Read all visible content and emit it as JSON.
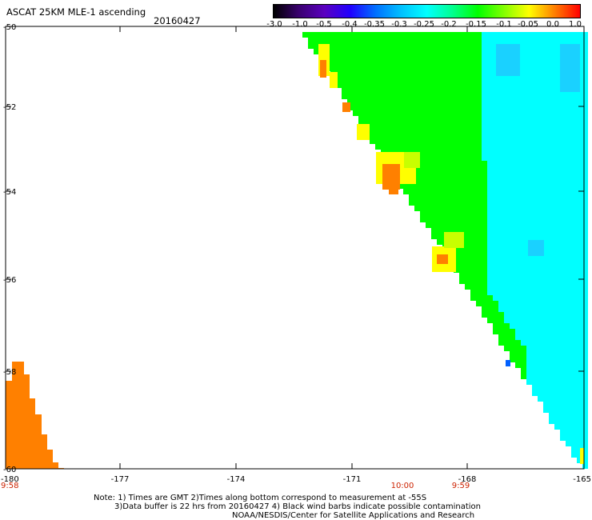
{
  "header": {
    "title": "ASCAT 25KM MLE-1 ascending",
    "date": "20160427"
  },
  "colorbar": {
    "ticks": [
      "-3.0",
      "-1.0",
      "-0.5",
      "-0.4",
      "-0.35",
      "-0.3",
      "-0.25",
      "-0.2",
      "-0.15",
      "-0.1",
      "-0.05",
      "0.0",
      "1.0"
    ],
    "gradient": [
      "#000000",
      "#3a0070",
      "#5a00c0",
      "#2000ff",
      "#0070ff",
      "#00c0ff",
      "#00ffff",
      "#00ff90",
      "#00ff00",
      "#80ff00",
      "#ffff00",
      "#ff8000",
      "#ff0000"
    ]
  },
  "map": {
    "lat_labels": [
      "-50",
      "-52",
      "-54",
      "-56",
      "-58",
      "-60"
    ],
    "lon_labels": [
      "-180",
      "-177",
      "-174",
      "-171",
      "-168",
      "-165"
    ],
    "time_labels": [
      "9:58",
      "10:00",
      "9:59"
    ],
    "colors": {
      "orange": "#ff8000",
      "yellow": "#ffff00",
      "green": "#00ff00",
      "cyan": "#00ffff",
      "lightblue": "#1ad1ff",
      "blue": "#0060ff",
      "time": "#cc2200"
    }
  },
  "notes": [
    "Note: 1) Times are GMT 2)Times along bottom correspond to measurement at -55S",
    "3)Data buffer is 22 hrs from 20160427 4) Black wind barbs indicate possible contamination",
    "NOAA/NESDIS/Center for Satellite Applications and Research"
  ]
}
